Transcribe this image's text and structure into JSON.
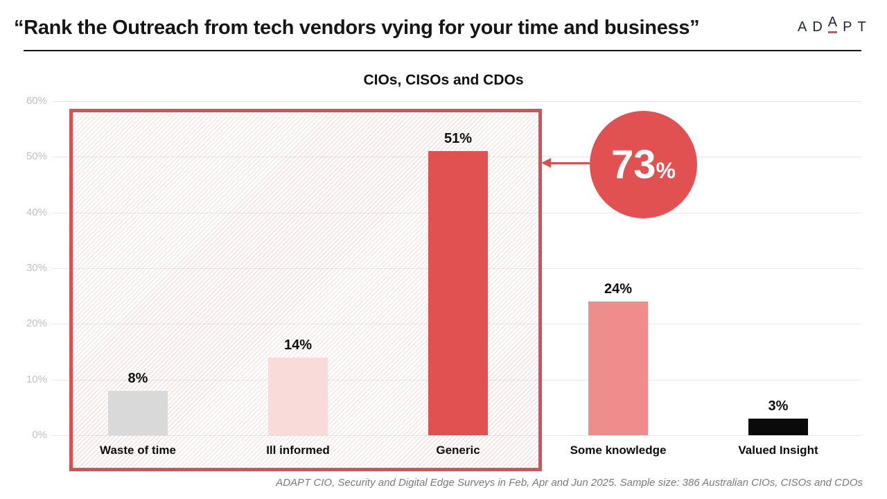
{
  "header": {
    "title": "“Rank the Outreach from tech vendors vying for your time and business”",
    "logo": {
      "letters": [
        "A",
        "D",
        "A",
        "P",
        "T"
      ],
      "accent_color": "#d15656"
    }
  },
  "chart_data": {
    "type": "bar",
    "title": "CIOs, CISOs and CDOs",
    "categories": [
      "Waste of time",
      "Ill informed",
      "Generic",
      "Some knowledge",
      "Valued Insight"
    ],
    "values": [
      8,
      14,
      51,
      24,
      3
    ],
    "value_labels": [
      "8%",
      "14%",
      "51%",
      "24%",
      "3%"
    ],
    "bar_colors": [
      "#d9d9d9",
      "#f9dcda",
      "#e25151",
      "#ef8d8d",
      "#0a0a0a"
    ],
    "xlabel": "",
    "ylabel": "",
    "ylim": [
      0,
      60
    ],
    "yticks": [
      "0%",
      "10%",
      "20%",
      "30%",
      "40%",
      "50%",
      "60%"
    ],
    "grid": true,
    "legend": false,
    "highlight": {
      "covers": [
        "Waste of time",
        "Ill informed",
        "Generic"
      ],
      "border_color": "#d65252",
      "fill": "diagonal-hatch-pink"
    }
  },
  "callout": {
    "value": "73",
    "suffix": "%",
    "color": "#e25151"
  },
  "footer": {
    "source": "ADAPT CIO, Security and Digital Edge Surveys in Feb, Apr and Jun 2025. Sample size: 386 Australian CIOs, CISOs and CDOs"
  }
}
